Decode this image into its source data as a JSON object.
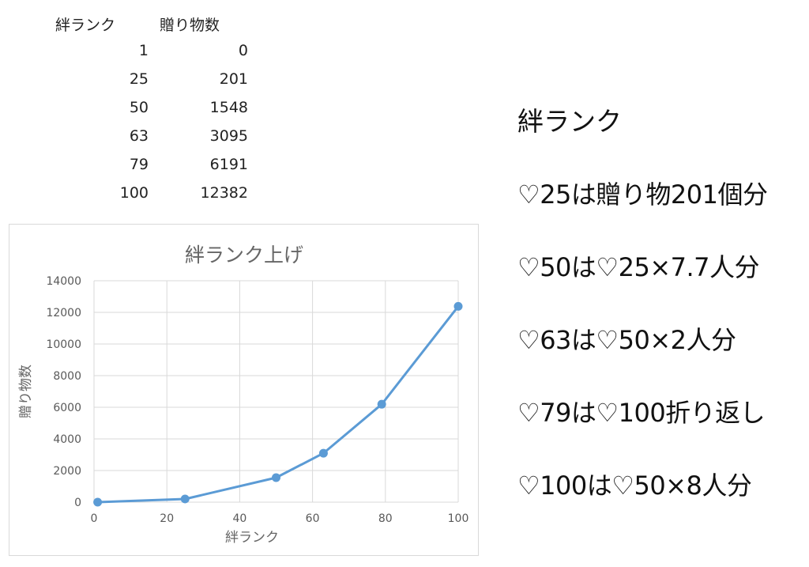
{
  "table": {
    "headers": [
      "絆ランク",
      "贈り物数"
    ],
    "rows": [
      [
        "1",
        "0"
      ],
      [
        "25",
        "201"
      ],
      [
        "50",
        "1548"
      ],
      [
        "63",
        "3095"
      ],
      [
        "79",
        "6191"
      ],
      [
        "100",
        "12382"
      ]
    ]
  },
  "chart_data": {
    "type": "scatter",
    "title": "絆ランク上げ",
    "xlabel": "絆ランク",
    "ylabel": "贈り物数",
    "x": [
      1,
      25,
      50,
      63,
      79,
      100
    ],
    "y": [
      0,
      201,
      1548,
      3095,
      6191,
      12382
    ],
    "xlim": [
      0,
      100
    ],
    "ylim": [
      0,
      14000
    ],
    "xticks": [
      "0",
      "20",
      "40",
      "60",
      "80",
      "100"
    ],
    "yticks": [
      "0",
      "2000",
      "4000",
      "6000",
      "8000",
      "10000",
      "12000",
      "14000"
    ],
    "grid": true,
    "legend": "none",
    "line_color": "#5b9bd5",
    "marker": "circle",
    "connected": true
  },
  "notes": {
    "title": "絆ランク",
    "lines": [
      "♡25は贈り物201個分",
      "♡50は♡25×7.7人分",
      "♡63は♡50×2人分",
      "♡79は♡100折り返し",
      "♡100は♡50×8人分"
    ]
  }
}
